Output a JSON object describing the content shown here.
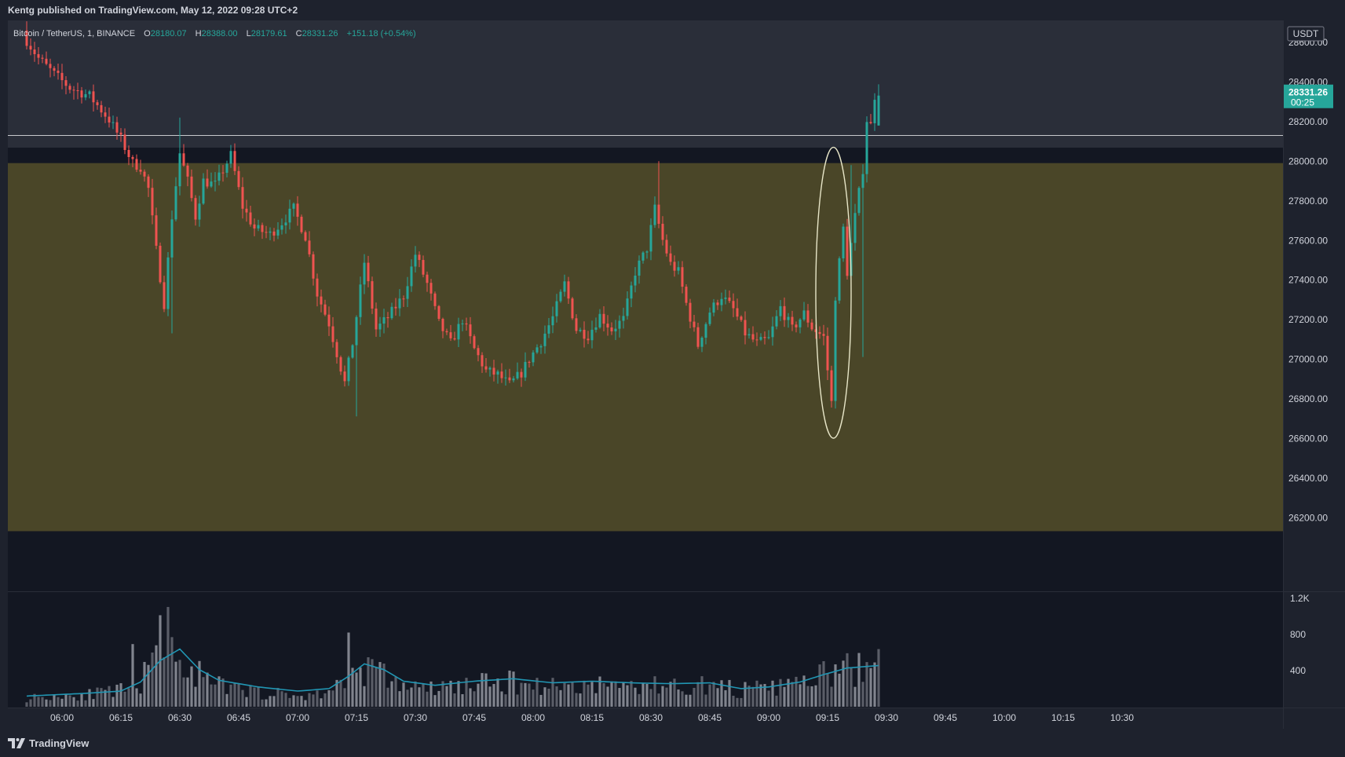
{
  "header": {
    "publisher": "Kentg published on TradingView.com, May 12, 2022 09:28 UTC+2"
  },
  "footer": {
    "logo_text": "TradingView",
    "logo_icon": "tradingview-logo-icon"
  },
  "legend": {
    "symbol": "Bitcoin / TetherUS, 1, BINANCE",
    "o_label": "O",
    "o": "28180.07",
    "h_label": "H",
    "h": "28388.00",
    "l_label": "L",
    "l": "28179.61",
    "c_label": "C",
    "c": "28331.26",
    "change": "+151.18 (+0.54%)"
  },
  "price_axis": {
    "currency": "USDT",
    "last_price": "28331.26",
    "countdown": "00:25",
    "ticks": [
      "28600.00",
      "28400.00",
      "28200.00",
      "28000.00",
      "27800.00",
      "27600.00",
      "27400.00",
      "27200.00",
      "27000.00",
      "26800.00",
      "26600.00",
      "26400.00",
      "26200.00"
    ]
  },
  "volume_axis": {
    "ticks": [
      "1.2K",
      "800",
      "400"
    ]
  },
  "time_axis": {
    "ticks": [
      "06:00",
      "06:15",
      "06:30",
      "06:45",
      "07:00",
      "07:15",
      "07:30",
      "07:45",
      "08:00",
      "08:15",
      "08:30",
      "08:45",
      "09:00",
      "09:15",
      "09:30",
      "09:45",
      "10:00",
      "10:15",
      "10:30"
    ]
  },
  "colors": {
    "background": "#1e222d",
    "pane": "#131722",
    "zone": "#4a4628",
    "up": "#26a69a",
    "down": "#ef5350",
    "volume": "#9598a1",
    "volume_ma": "#2196b3",
    "annotation": "#e8e6c8"
  },
  "chart_data": {
    "type": "candlestick",
    "interval": "1m",
    "symbol": "BTCUSDT",
    "y_range": [
      26090,
      28700
    ],
    "zone": {
      "low": 26130,
      "high": 27990
    },
    "level": 28130,
    "annotation": {
      "shape": "ellipse",
      "time_from": "09:12",
      "time_to": "09:21",
      "price_from": 26600,
      "price_to": 28070
    },
    "candle_path": [
      [
        "05:51",
        28640
      ],
      [
        "05:55",
        28520
      ],
      [
        "05:59",
        28440
      ],
      [
        "06:03",
        28370
      ],
      [
        "06:08",
        28330
      ],
      [
        "06:13",
        28210
      ],
      [
        "06:16",
        28110
      ],
      [
        "06:19",
        27990
      ],
      [
        "06:21",
        27970
      ],
      [
        "06:23",
        27860
      ],
      [
        "06:25",
        27550
      ],
      [
        "06:27",
        27280
      ],
      [
        "06:29",
        27720
      ],
      [
        "06:31",
        28040
      ],
      [
        "06:33",
        27900
      ],
      [
        "06:35",
        27720
      ],
      [
        "06:37",
        27900
      ],
      [
        "06:40",
        27880
      ],
      [
        "06:44",
        28030
      ],
      [
        "06:47",
        27770
      ],
      [
        "06:50",
        27660
      ],
      [
        "06:54",
        27630
      ],
      [
        "06:57",
        27690
      ],
      [
        "07:00",
        27760
      ],
      [
        "07:03",
        27620
      ],
      [
        "07:06",
        27330
      ],
      [
        "07:09",
        27180
      ],
      [
        "07:11",
        27030
      ],
      [
        "07:13",
        26880
      ],
      [
        "07:15",
        27080
      ],
      [
        "07:18",
        27490
      ],
      [
        "07:21",
        27150
      ],
      [
        "07:24",
        27210
      ],
      [
        "07:28",
        27320
      ],
      [
        "07:31",
        27530
      ],
      [
        "07:34",
        27380
      ],
      [
        "07:37",
        27180
      ],
      [
        "07:40",
        27080
      ],
      [
        "07:43",
        27200
      ],
      [
        "07:46",
        27050
      ],
      [
        "07:49",
        26940
      ],
      [
        "07:52",
        26920
      ],
      [
        "07:55",
        26870
      ],
      [
        "07:58",
        26930
      ],
      [
        "08:00",
        27000
      ],
      [
        "08:03",
        27090
      ],
      [
        "08:06",
        27210
      ],
      [
        "08:09",
        27380
      ],
      [
        "08:12",
        27150
      ],
      [
        "08:15",
        27120
      ],
      [
        "08:18",
        27220
      ],
      [
        "08:21",
        27150
      ],
      [
        "08:24",
        27200
      ],
      [
        "08:27",
        27440
      ],
      [
        "08:30",
        27560
      ],
      [
        "08:32",
        27760
      ],
      [
        "08:34",
        27600
      ],
      [
        "08:36",
        27480
      ],
      [
        "08:38",
        27440
      ],
      [
        "08:40",
        27280
      ],
      [
        "08:43",
        27070
      ],
      [
        "08:46",
        27240
      ],
      [
        "08:49",
        27320
      ],
      [
        "08:52",
        27250
      ],
      [
        "08:55",
        27130
      ],
      [
        "08:58",
        27080
      ],
      [
        "09:01",
        27100
      ],
      [
        "09:04",
        27260
      ],
      [
        "09:07",
        27150
      ],
      [
        "09:10",
        27230
      ],
      [
        "09:12",
        27160
      ],
      [
        "09:15",
        27110
      ],
      [
        "09:17",
        26780
      ],
      [
        "09:18",
        27320
      ],
      [
        "09:20",
        27660
      ],
      [
        "09:21",
        27440
      ],
      [
        "09:23",
        27720
      ],
      [
        "09:25",
        27960
      ],
      [
        "09:26",
        28210
      ],
      [
        "09:27",
        28180
      ],
      [
        "09:28",
        28331.26
      ]
    ],
    "last_candle": {
      "time": "09:28",
      "open": 28180.07,
      "high": 28388.0,
      "low": 28179.61,
      "close": 28331.26
    },
    "volume_range": [
      0,
      1250
    ],
    "volume_profile": [
      [
        "05:51",
        120
      ],
      [
        "06:03",
        160
      ],
      [
        "06:10",
        180
      ],
      [
        "06:18",
        230
      ],
      [
        "06:23",
        540
      ],
      [
        "06:27",
        700
      ],
      [
        "06:30",
        720
      ],
      [
        "06:34",
        450
      ],
      [
        "06:38",
        300
      ],
      [
        "06:45",
        230
      ],
      [
        "06:55",
        170
      ],
      [
        "07:03",
        140
      ],
      [
        "07:08",
        220
      ],
      [
        "07:12",
        320
      ],
      [
        "07:16",
        560
      ],
      [
        "07:20",
        480
      ],
      [
        "07:25",
        320
      ],
      [
        "07:32",
        230
      ],
      [
        "07:45",
        300
      ],
      [
        "07:55",
        330
      ],
      [
        "08:05",
        280
      ],
      [
        "08:15",
        300
      ],
      [
        "08:25",
        290
      ],
      [
        "08:35",
        280
      ],
      [
        "08:45",
        290
      ],
      [
        "08:52",
        230
      ],
      [
        "09:00",
        240
      ],
      [
        "09:07",
        310
      ],
      [
        "09:13",
        400
      ],
      [
        "09:18",
        480
      ],
      [
        "09:24",
        520
      ],
      [
        "09:28",
        530
      ]
    ],
    "volume_ma_path": [
      [
        "05:51",
        130
      ],
      [
        "06:05",
        160
      ],
      [
        "06:15",
        190
      ],
      [
        "06:20",
        300
      ],
      [
        "06:25",
        560
      ],
      [
        "06:30",
        700
      ],
      [
        "06:35",
        450
      ],
      [
        "06:40",
        320
      ],
      [
        "06:50",
        240
      ],
      [
        "07:00",
        190
      ],
      [
        "07:08",
        220
      ],
      [
        "07:13",
        370
      ],
      [
        "07:17",
        520
      ],
      [
        "07:22",
        450
      ],
      [
        "07:27",
        310
      ],
      [
        "07:35",
        260
      ],
      [
        "07:45",
        310
      ],
      [
        "07:55",
        340
      ],
      [
        "08:05",
        290
      ],
      [
        "08:15",
        310
      ],
      [
        "08:25",
        290
      ],
      [
        "08:35",
        280
      ],
      [
        "08:45",
        290
      ],
      [
        "08:53",
        220
      ],
      [
        "09:00",
        240
      ],
      [
        "09:08",
        300
      ],
      [
        "09:14",
        390
      ],
      [
        "09:20",
        470
      ],
      [
        "09:28",
        500
      ]
    ]
  }
}
